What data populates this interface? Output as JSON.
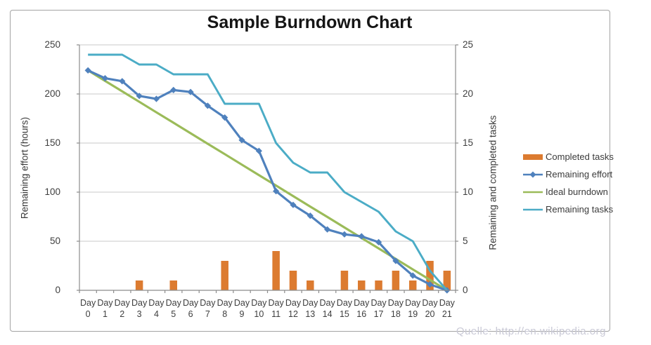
{
  "title": "Sample Burndown Chart",
  "watermark": "Quelle: http://en.wikipedia.org",
  "left_axis": {
    "title": "Remaining effort (hours)",
    "ticks": [
      "0",
      "50",
      "100",
      "150",
      "200",
      "250"
    ],
    "tick_values": [
      0,
      50,
      100,
      150,
      200,
      250
    ],
    "max": 250
  },
  "right_axis": {
    "title": "Remaining and completed tasks",
    "ticks": [
      "0",
      "5",
      "10",
      "15",
      "20",
      "25"
    ],
    "tick_values": [
      0,
      5,
      10,
      15,
      20,
      25
    ],
    "max": 25
  },
  "x_axis": {
    "label_prefix": "Day",
    "categories": [
      "0",
      "1",
      "2",
      "3",
      "4",
      "5",
      "6",
      "7",
      "8",
      "9",
      "10",
      "11",
      "12",
      "13",
      "14",
      "15",
      "16",
      "17",
      "18",
      "19",
      "20",
      "21"
    ]
  },
  "legend": [
    {
      "label": "Completed tasks",
      "type": "bar",
      "color": "#dc7b30"
    },
    {
      "label": "Remaining effort",
      "type": "line-marker",
      "color": "#4f81bd"
    },
    {
      "label": "Ideal burndown",
      "type": "line",
      "color": "#9bbb59"
    },
    {
      "label": "Remaining tasks",
      "type": "line",
      "color": "#4bacc6"
    }
  ],
  "colors": {
    "completed_tasks": "#dc7b30",
    "remaining_effort": "#4f81bd",
    "ideal_burndown": "#9bbb59",
    "remaining_tasks": "#4bacc6",
    "gridline": "#c8c8c8",
    "axis_line": "#8c8c8c",
    "tick_text": "#3e3e3e",
    "title_text": "#151515",
    "watermark_text": "#c9c9d6"
  },
  "chart_data": {
    "type": "combo (bar + line)",
    "title": "Sample Burndown Chart",
    "x_categories": [
      "Day 0",
      "Day 1",
      "Day 2",
      "Day 3",
      "Day 4",
      "Day 5",
      "Day 6",
      "Day 7",
      "Day 8",
      "Day 9",
      "Day 10",
      "Day 11",
      "Day 12",
      "Day 13",
      "Day 14",
      "Day 15",
      "Day 16",
      "Day 17",
      "Day 18",
      "Day 19",
      "Day 20",
      "Day 21"
    ],
    "left_axis_label": "Remaining effort (hours)",
    "right_axis_label": "Remaining and completed tasks",
    "left_ylim": [
      0,
      250
    ],
    "right_ylim": [
      0,
      25
    ],
    "grid": "horizontal",
    "legend_position": "right",
    "series": [
      {
        "name": "Completed tasks",
        "type": "bar",
        "axis": "right",
        "values": [
          0,
          0,
          0,
          1,
          0,
          1,
          0,
          0,
          3,
          0,
          0,
          4,
          2,
          1,
          0,
          2,
          1,
          1,
          2,
          1,
          3,
          2
        ]
      },
      {
        "name": "Remaining effort",
        "type": "line",
        "marker": "diamond",
        "axis": "left",
        "values": [
          224,
          216,
          213,
          198,
          195,
          204,
          202,
          188,
          176,
          153,
          142,
          101,
          87,
          76,
          62,
          57,
          55,
          49,
          30,
          15,
          6,
          0
        ]
      },
      {
        "name": "Ideal burndown",
        "type": "line",
        "marker": "none",
        "axis": "left",
        "values": [
          224,
          213.3,
          202.7,
          192,
          181.3,
          170.7,
          160,
          149.3,
          138.7,
          128,
          117.3,
          106.7,
          96,
          85.3,
          74.7,
          64,
          53.3,
          42.7,
          32,
          21.3,
          10.7,
          0
        ]
      },
      {
        "name": "Remaining tasks",
        "type": "line",
        "marker": "none",
        "axis": "right",
        "values": [
          24,
          24,
          24,
          23,
          23,
          22,
          22,
          22,
          19,
          19,
          19,
          15,
          13,
          12,
          12,
          10,
          9,
          8,
          6,
          5,
          2,
          0
        ]
      }
    ]
  }
}
